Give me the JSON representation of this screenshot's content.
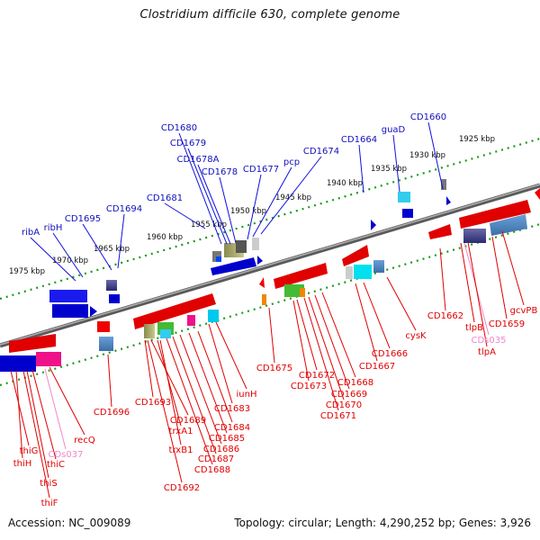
{
  "title": "Clostridium difficile 630, complete genome",
  "accession": "Accession: NC_009089",
  "topology": "Topology: circular; Length: 4,290,252 bp; Genes: 3,926",
  "colors": {
    "forward": "#0000cc",
    "reverse": "#e00000",
    "pseudo": "#ee88cc",
    "axis": "#888888",
    "tick": "#1a9a1a",
    "text": "#111111"
  },
  "ticks": [
    "1975 kbp",
    "1970 kbp",
    "1965 kbp",
    "1960 kbp",
    "1955 kbp",
    "1950 kbp",
    "1945 kbp",
    "1940 kbp",
    "1935 kbp",
    "1930 kbp",
    "1925 kbp"
  ],
  "labels_forward": [
    "ribA",
    "ribH",
    "CD1695",
    "CD1694",
    "CD1681",
    "CD1680",
    "CD1679",
    "CD1678A",
    "CD1678",
    "CD1677",
    "pcp",
    "CD1674",
    "CD1664",
    "guaD",
    "CD1660"
  ],
  "labels_reverse": [
    "thiG",
    "thiH",
    "CDs037",
    "thiC",
    "thiS",
    "thiF",
    "recQ",
    "CD1696",
    "CD1693",
    "CD1692",
    "CD1689",
    "trxA1",
    "trxB1",
    "CD1688",
    "CD1687",
    "CD1686",
    "CD1685",
    "CD1684",
    "CD1683",
    "iunH",
    "CD1675",
    "CD1673",
    "CD1672",
    "CD1671",
    "CD1670",
    "CD1669",
    "CD1668",
    "CD1667",
    "CD1666",
    "cysK",
    "CD1662",
    "tlpB",
    "CDs035",
    "tlpA",
    "CD1659",
    "gcvPB"
  ]
}
